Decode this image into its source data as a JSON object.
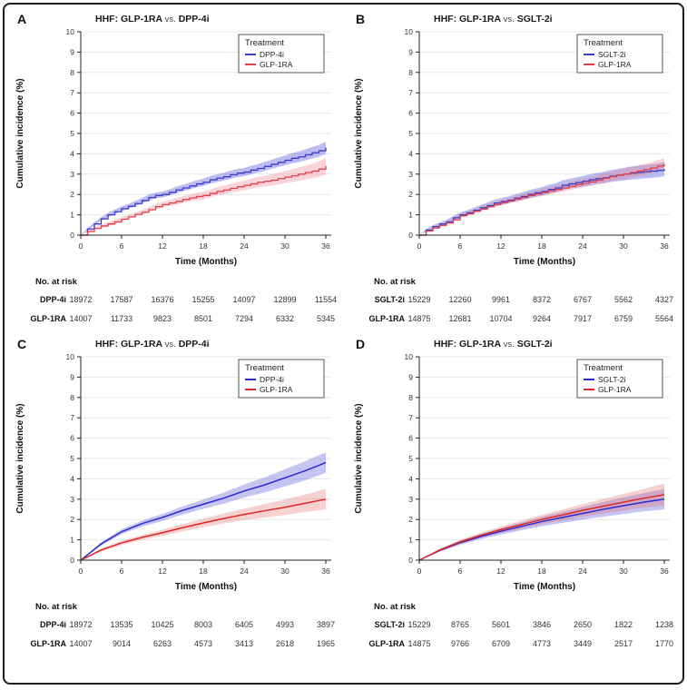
{
  "chart_data": [
    {
      "type": "line",
      "panel_label": "A",
      "title": {
        "left": "HHF: GLP-1RA",
        "vs": "vs.",
        "right": "DPP-4i"
      },
      "title_full": "HHF: GLP-1RA vs. DPP-4i",
      "xlabel": "Time (Months)",
      "ylabel": "Cumulative incidence (%)",
      "xlim": [
        0,
        36
      ],
      "ylim": [
        0,
        10
      ],
      "xticks": [
        0,
        6,
        12,
        18,
        24,
        30,
        36
      ],
      "yticks": [
        0,
        1,
        2,
        3,
        4,
        5,
        6,
        7,
        8,
        9,
        10
      ],
      "grid": "horizontal",
      "legend": {
        "title": "Treatment",
        "position": "top-right"
      },
      "curve_style": "step",
      "series": [
        {
          "name": "DPP-4i",
          "color": "#3b3bc8",
          "band_color": "rgba(85,90,220,0.40)",
          "x": [
            0,
            1,
            2,
            3,
            4,
            5,
            6,
            7,
            8,
            9,
            10,
            11,
            12,
            13,
            14,
            15,
            16,
            17,
            18,
            19,
            20,
            21,
            22,
            23,
            24,
            25,
            26,
            27,
            28,
            29,
            30,
            31,
            32,
            33,
            34,
            35,
            36
          ],
          "y": [
            0,
            0.3,
            0.55,
            0.8,
            1.0,
            1.15,
            1.3,
            1.42,
            1.55,
            1.7,
            1.85,
            1.95,
            2.0,
            2.1,
            2.22,
            2.32,
            2.42,
            2.52,
            2.6,
            2.72,
            2.8,
            2.87,
            2.97,
            3.05,
            3.1,
            3.2,
            3.28,
            3.38,
            3.48,
            3.58,
            3.68,
            3.78,
            3.85,
            3.95,
            4.05,
            4.15,
            4.3
          ],
          "band": [
            0,
            0.06,
            0.08,
            0.09,
            0.1,
            0.11,
            0.12,
            0.12,
            0.13,
            0.13,
            0.14,
            0.14,
            0.15,
            0.15,
            0.16,
            0.16,
            0.17,
            0.17,
            0.18,
            0.18,
            0.19,
            0.19,
            0.2,
            0.2,
            0.2,
            0.21,
            0.21,
            0.22,
            0.22,
            0.23,
            0.24,
            0.25,
            0.26,
            0.27,
            0.28,
            0.29,
            0.3
          ]
        },
        {
          "name": "GLP-1RA",
          "color": "#e0404a",
          "band_color": "rgba(235,115,130,0.30)",
          "x": [
            0,
            1,
            2,
            3,
            4,
            5,
            6,
            7,
            8,
            9,
            10,
            11,
            12,
            13,
            14,
            15,
            16,
            17,
            18,
            19,
            20,
            21,
            22,
            23,
            24,
            25,
            26,
            27,
            28,
            29,
            30,
            31,
            32,
            33,
            34,
            35,
            36
          ],
          "y": [
            0,
            0.18,
            0.33,
            0.45,
            0.55,
            0.65,
            0.78,
            0.9,
            1.02,
            1.12,
            1.25,
            1.4,
            1.5,
            1.58,
            1.66,
            1.75,
            1.83,
            1.9,
            1.95,
            2.05,
            2.15,
            2.22,
            2.3,
            2.38,
            2.45,
            2.52,
            2.6,
            2.65,
            2.7,
            2.78,
            2.85,
            2.92,
            3.0,
            3.08,
            3.15,
            3.25,
            3.4
          ],
          "band": [
            0,
            0.05,
            0.07,
            0.08,
            0.09,
            0.1,
            0.1,
            0.11,
            0.11,
            0.12,
            0.13,
            0.14,
            0.15,
            0.15,
            0.16,
            0.17,
            0.17,
            0.18,
            0.19,
            0.2,
            0.21,
            0.21,
            0.22,
            0.23,
            0.24,
            0.25,
            0.26,
            0.27,
            0.28,
            0.29,
            0.3,
            0.31,
            0.33,
            0.34,
            0.36,
            0.38,
            0.4
          ]
        }
      ],
      "risk_table": {
        "label": "No. at risk",
        "times": [
          0,
          6,
          12,
          18,
          24,
          30,
          36
        ],
        "rows": [
          {
            "name": "DPP-4i",
            "counts": [
              18972,
              17587,
              16376,
              15255,
              14097,
              12899,
              11554
            ]
          },
          {
            "name": "GLP-1RA",
            "counts": [
              14007,
              11733,
              9823,
              8501,
              7294,
              6332,
              5345
            ]
          }
        ]
      }
    },
    {
      "type": "line",
      "panel_label": "B",
      "title": {
        "left": "HHF: GLP-1RA",
        "vs": "vs.",
        "right": "SGLT-2i"
      },
      "title_full": "HHF: GLP-1RA vs. SGLT-2i",
      "xlabel": "Time (Months)",
      "ylabel": "Cumulative incidence (%)",
      "xlim": [
        0,
        36
      ],
      "ylim": [
        0,
        10
      ],
      "xticks": [
        0,
        6,
        12,
        18,
        24,
        30,
        36
      ],
      "yticks": [
        0,
        1,
        2,
        3,
        4,
        5,
        6,
        7,
        8,
        9,
        10
      ],
      "grid": "horizontal",
      "legend": {
        "title": "Treatment",
        "position": "top-right"
      },
      "curve_style": "step",
      "series": [
        {
          "name": "SGLT-2i",
          "color": "#3b3bc8",
          "band_color": "rgba(85,90,220,0.40)",
          "x": [
            0,
            1,
            2,
            3,
            4,
            5,
            6,
            7,
            8,
            9,
            10,
            11,
            12,
            13,
            14,
            15,
            16,
            17,
            18,
            19,
            20,
            21,
            22,
            23,
            24,
            25,
            26,
            27,
            28,
            29,
            30,
            31,
            32,
            33,
            34,
            35,
            36
          ],
          "y": [
            0,
            0.25,
            0.42,
            0.55,
            0.65,
            0.85,
            1.0,
            1.1,
            1.22,
            1.35,
            1.45,
            1.58,
            1.65,
            1.72,
            1.82,
            1.9,
            2.0,
            2.08,
            2.15,
            2.25,
            2.32,
            2.45,
            2.52,
            2.58,
            2.65,
            2.72,
            2.78,
            2.82,
            2.9,
            2.95,
            3.0,
            3.05,
            3.08,
            3.12,
            3.15,
            3.18,
            3.25
          ],
          "band": [
            0,
            0.05,
            0.07,
            0.08,
            0.09,
            0.1,
            0.11,
            0.12,
            0.13,
            0.14,
            0.15,
            0.16,
            0.17,
            0.17,
            0.18,
            0.19,
            0.2,
            0.2,
            0.21,
            0.22,
            0.23,
            0.24,
            0.24,
            0.25,
            0.26,
            0.27,
            0.27,
            0.28,
            0.29,
            0.3,
            0.31,
            0.32,
            0.33,
            0.33,
            0.34,
            0.34,
            0.35
          ]
        },
        {
          "name": "GLP-1RA",
          "color": "#e0404a",
          "band_color": "rgba(235,115,130,0.30)",
          "x": [
            0,
            1,
            2,
            3,
            4,
            5,
            6,
            7,
            8,
            9,
            10,
            11,
            12,
            13,
            14,
            15,
            16,
            17,
            18,
            19,
            20,
            21,
            22,
            23,
            24,
            25,
            26,
            27,
            28,
            29,
            30,
            31,
            32,
            33,
            34,
            35,
            36
          ],
          "y": [
            0,
            0.2,
            0.35,
            0.48,
            0.6,
            0.75,
            0.95,
            1.05,
            1.18,
            1.28,
            1.4,
            1.5,
            1.6,
            1.68,
            1.78,
            1.85,
            1.95,
            2.02,
            2.1,
            2.18,
            2.25,
            2.32,
            2.4,
            2.48,
            2.55,
            2.62,
            2.7,
            2.8,
            2.88,
            2.95,
            3.0,
            3.08,
            3.15,
            3.22,
            3.3,
            3.4,
            3.5
          ],
          "band": [
            0,
            0.04,
            0.06,
            0.07,
            0.08,
            0.08,
            0.09,
            0.1,
            0.1,
            0.11,
            0.12,
            0.12,
            0.13,
            0.13,
            0.14,
            0.15,
            0.15,
            0.16,
            0.17,
            0.17,
            0.18,
            0.19,
            0.19,
            0.2,
            0.21,
            0.21,
            0.22,
            0.23,
            0.23,
            0.24,
            0.25,
            0.26,
            0.27,
            0.28,
            0.28,
            0.29,
            0.3
          ]
        }
      ],
      "risk_table": {
        "label": "No. at risk",
        "times": [
          0,
          6,
          12,
          18,
          24,
          30,
          36
        ],
        "rows": [
          {
            "name": "SGLT-2i",
            "counts": [
              15229,
              12260,
              9961,
              8372,
              6767,
              5562,
              4327
            ]
          },
          {
            "name": "GLP-1RA",
            "counts": [
              14875,
              12681,
              10704,
              9264,
              7917,
              6759,
              5564
            ]
          }
        ]
      }
    },
    {
      "type": "line",
      "panel_label": "C",
      "title": {
        "left": "HHF: GLP-1RA",
        "vs": "vs.",
        "right": "DPP-4i"
      },
      "title_full": "HHF: GLP-1RA vs. DPP-4i",
      "xlabel": "Time (Months)",
      "ylabel": "Cumulative incidence (%)",
      "xlim": [
        0,
        36
      ],
      "ylim": [
        0,
        10
      ],
      "xticks": [
        0,
        6,
        12,
        18,
        24,
        30,
        36
      ],
      "yticks": [
        0,
        1,
        2,
        3,
        4,
        5,
        6,
        7,
        8,
        9,
        10
      ],
      "grid": "horizontal",
      "legend": {
        "title": "Treatment",
        "position": "top-right"
      },
      "curve_style": "smooth",
      "series": [
        {
          "name": "DPP-4i",
          "color": "#2b2bcc",
          "band_color": "rgba(85,90,220,0.35)",
          "x": [
            0,
            3,
            6,
            9,
            12,
            15,
            18,
            21,
            24,
            27,
            30,
            33,
            36
          ],
          "y": [
            0,
            0.8,
            1.4,
            1.8,
            2.1,
            2.45,
            2.75,
            3.05,
            3.4,
            3.7,
            4.05,
            4.4,
            4.8
          ],
          "band": [
            0,
            0.08,
            0.12,
            0.15,
            0.17,
            0.2,
            0.23,
            0.27,
            0.32,
            0.37,
            0.42,
            0.47,
            0.5
          ]
        },
        {
          "name": "GLP-1RA",
          "color": "#dd2626",
          "band_color": "rgba(230,110,110,0.32)",
          "x": [
            0,
            3,
            6,
            9,
            12,
            15,
            18,
            21,
            24,
            27,
            30,
            33,
            36
          ],
          "y": [
            0,
            0.5,
            0.85,
            1.12,
            1.35,
            1.6,
            1.83,
            2.05,
            2.25,
            2.43,
            2.6,
            2.8,
            3.0
          ],
          "band": [
            0,
            0.07,
            0.1,
            0.12,
            0.15,
            0.18,
            0.21,
            0.25,
            0.28,
            0.33,
            0.38,
            0.43,
            0.5
          ]
        }
      ],
      "risk_table": {
        "label": "No. at risk",
        "times": [
          0,
          6,
          12,
          18,
          24,
          30,
          36
        ],
        "rows": [
          {
            "name": "DPP-4i",
            "counts": [
              18972,
              13535,
              10425,
              8003,
              6405,
              4993,
              3897
            ]
          },
          {
            "name": "GLP-1RA",
            "counts": [
              14007,
              9014,
              6263,
              4573,
              3413,
              2618,
              1965
            ]
          }
        ]
      }
    },
    {
      "type": "line",
      "panel_label": "D",
      "title": {
        "left": "HHF: GLP-1RA",
        "vs": "vs.",
        "right": "SGLT-2i"
      },
      "title_full": "HHF: GLP-1RA vs. SGLT-2i",
      "xlabel": "Time (Months)",
      "ylabel": "Cumulative incidence (%)",
      "xlim": [
        0,
        36
      ],
      "ylim": [
        0,
        10
      ],
      "xticks": [
        0,
        6,
        12,
        18,
        24,
        30,
        36
      ],
      "yticks": [
        0,
        1,
        2,
        3,
        4,
        5,
        6,
        7,
        8,
        9,
        10
      ],
      "grid": "horizontal",
      "legend": {
        "title": "Treatment",
        "position": "top-right"
      },
      "curve_style": "smooth",
      "series": [
        {
          "name": "SGLT-2i",
          "color": "#2b2bcc",
          "band_color": "rgba(85,90,220,0.35)",
          "x": [
            0,
            3,
            6,
            9,
            12,
            15,
            18,
            21,
            24,
            27,
            30,
            33,
            36
          ],
          "y": [
            0,
            0.48,
            0.86,
            1.16,
            1.42,
            1.66,
            1.9,
            2.1,
            2.3,
            2.5,
            2.68,
            2.85,
            3.0
          ],
          "band": [
            0,
            0.06,
            0.1,
            0.13,
            0.16,
            0.19,
            0.23,
            0.27,
            0.31,
            0.36,
            0.41,
            0.45,
            0.5
          ]
        },
        {
          "name": "GLP-1RA",
          "color": "#dd2626",
          "band_color": "rgba(230,110,110,0.32)",
          "x": [
            0,
            3,
            6,
            9,
            12,
            15,
            18,
            21,
            24,
            27,
            30,
            33,
            36
          ],
          "y": [
            0,
            0.5,
            0.9,
            1.22,
            1.5,
            1.75,
            2.0,
            2.22,
            2.45,
            2.65,
            2.85,
            3.05,
            3.22
          ],
          "band": [
            0,
            0.06,
            0.1,
            0.13,
            0.16,
            0.2,
            0.23,
            0.27,
            0.31,
            0.36,
            0.41,
            0.46,
            0.55
          ]
        }
      ],
      "risk_table": {
        "label": "No. at risk",
        "times": [
          0,
          6,
          12,
          18,
          24,
          30,
          36
        ],
        "rows": [
          {
            "name": "SGLT-2i",
            "counts": [
              15229,
              8765,
              5601,
              3846,
              2650,
              1822,
              1238
            ]
          },
          {
            "name": "GLP-1RA",
            "counts": [
              14875,
              9766,
              6709,
              4773,
              3449,
              2517,
              1770
            ]
          }
        ]
      }
    }
  ]
}
